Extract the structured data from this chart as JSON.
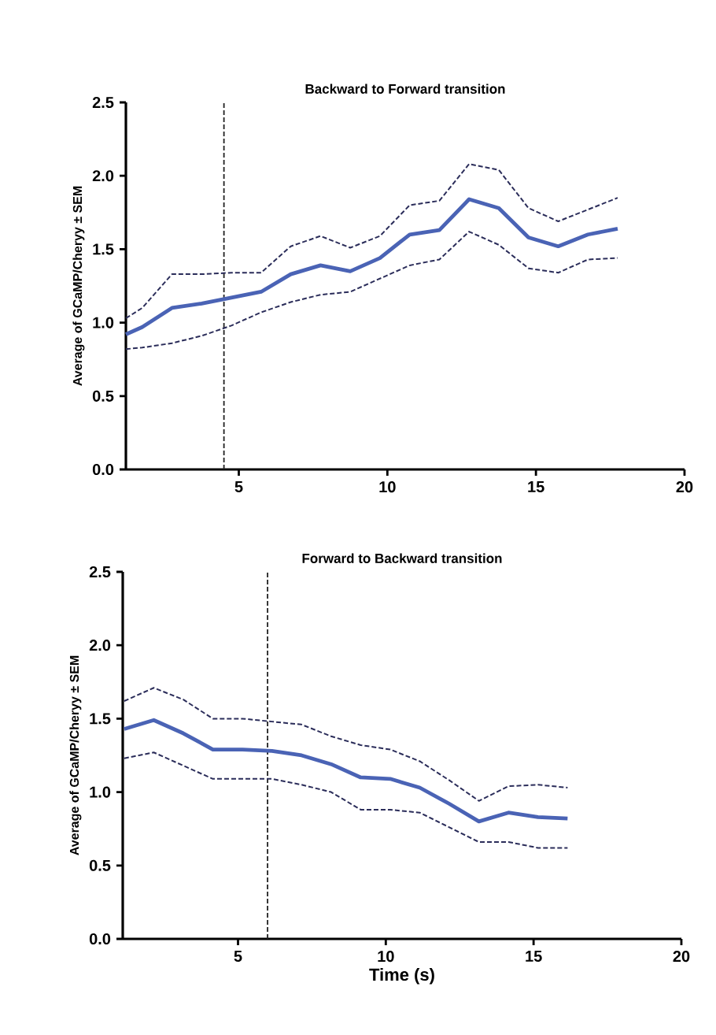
{
  "chart_data": [
    {
      "type": "line",
      "title": "Backward to Forward transition",
      "ylabel": "Average of GCaMP/Cheryy ± SEM",
      "xlim": [
        1.2,
        20
      ],
      "ylim": [
        0,
        2.5
      ],
      "xticks": [
        5,
        10,
        15,
        20
      ],
      "yticks": [
        {
          "value": 0,
          "label": "0.0"
        },
        {
          "value": 0.5,
          "label": "0.5"
        },
        {
          "value": 1,
          "label": "1.0"
        },
        {
          "value": 1.5,
          "label": "1.5"
        },
        {
          "value": 2,
          "label": "2.0"
        },
        {
          "value": 2.5,
          "label": "2.5"
        }
      ],
      "x": [
        1.2,
        1.75,
        2.75,
        3.75,
        4.75,
        5.75,
        6.75,
        7.75,
        8.75,
        9.75,
        10.75,
        11.75,
        12.75,
        13.75,
        14.75,
        15.75,
        16.75,
        17.75
      ],
      "series": [
        {
          "color": "#4a63b5",
          "line_style": "solid",
          "values": [
            0.92,
            0.97,
            1.1,
            1.13,
            1.17,
            1.21,
            1.33,
            1.39,
            1.35,
            1.44,
            1.6,
            1.63,
            1.84,
            1.78,
            1.58,
            1.52,
            1.6,
            1.64
          ]
        },
        {
          "color": "#2b2d5a",
          "line_style": "dashed",
          "values": [
            1.03,
            1.1,
            1.33,
            1.33,
            1.34,
            1.34,
            1.52,
            1.59,
            1.51,
            1.59,
            1.8,
            1.83,
            2.08,
            2.04,
            1.78,
            1.69,
            1.77,
            1.85
          ]
        },
        {
          "color": "#2b2d5a",
          "line_style": "dashed",
          "values": [
            0.82,
            0.83,
            0.86,
            0.91,
            0.98,
            1.07,
            1.14,
            1.19,
            1.21,
            1.3,
            1.39,
            1.43,
            1.62,
            1.53,
            1.37,
            1.34,
            1.43,
            1.44
          ]
        }
      ],
      "ref_lines": [
        {
          "axis": "x",
          "value": 4.5,
          "color": "#222222",
          "line_style": "dashed"
        }
      ]
    },
    {
      "type": "line",
      "title": "Forward to Backward transition",
      "xlabel": "Time (s)",
      "ylabel": "Average of GCaMP/Cheryy ± SEM",
      "xlim": [
        1.1,
        20
      ],
      "ylim": [
        0,
        2.5
      ],
      "xticks": [
        5,
        10,
        15,
        20
      ],
      "yticks": [
        {
          "value": 0,
          "label": "0.0"
        },
        {
          "value": 0.5,
          "label": "0.5"
        },
        {
          "value": 1,
          "label": "1.0"
        },
        {
          "value": 1.5,
          "label": "1.5"
        },
        {
          "value": 2,
          "label": "2.0"
        },
        {
          "value": 2.5,
          "label": "2.5"
        }
      ],
      "x": [
        1.15,
        2.15,
        3.15,
        4.15,
        5.15,
        6.15,
        7.15,
        8.15,
        9.15,
        10.15,
        11.15,
        12.15,
        13.15,
        14.15,
        15.15,
        16.15
      ],
      "series": [
        {
          "color": "#4a63b5",
          "line_style": "solid",
          "values": [
            1.43,
            1.49,
            1.4,
            1.29,
            1.29,
            1.28,
            1.25,
            1.19,
            1.1,
            1.09,
            1.03,
            0.92,
            0.8,
            0.86,
            0.83,
            0.82
          ]
        },
        {
          "color": "#2b2d5a",
          "line_style": "dashed",
          "values": [
            1.62,
            1.71,
            1.63,
            1.5,
            1.5,
            1.48,
            1.46,
            1.38,
            1.32,
            1.29,
            1.21,
            1.08,
            0.94,
            1.04,
            1.05,
            1.03
          ]
        },
        {
          "color": "#2b2d5a",
          "line_style": "dashed",
          "values": [
            1.23,
            1.27,
            1.18,
            1.09,
            1.09,
            1.09,
            1.05,
            1.0,
            0.88,
            0.88,
            0.86,
            0.76,
            0.66,
            0.66,
            0.62,
            0.62
          ]
        }
      ],
      "ref_lines": [
        {
          "axis": "x",
          "value": 6,
          "color": "#222222",
          "line_style": "dashed"
        }
      ]
    }
  ]
}
